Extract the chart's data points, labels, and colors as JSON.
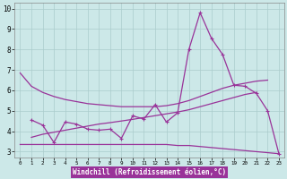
{
  "xlabel": "Windchill (Refroidissement éolien,°C)",
  "bg_color": "#cce8e8",
  "grid_color": "#aacccc",
  "line_color": "#993399",
  "xlim": [
    -0.5,
    23.5
  ],
  "ylim": [
    2.7,
    10.3
  ],
  "xticks": [
    0,
    1,
    2,
    3,
    4,
    5,
    6,
    7,
    8,
    9,
    10,
    11,
    12,
    13,
    14,
    15,
    16,
    17,
    18,
    19,
    20,
    21,
    22,
    23
  ],
  "yticks": [
    3,
    4,
    5,
    6,
    7,
    8,
    9,
    10
  ],
  "series1_x": [
    0,
    1,
    2,
    3,
    4,
    5,
    6,
    7,
    8,
    9,
    10,
    11,
    12,
    13,
    14,
    15,
    16,
    17,
    18,
    19,
    20,
    21,
    22
  ],
  "series1_y": [
    6.85,
    6.2,
    5.9,
    5.7,
    5.55,
    5.45,
    5.35,
    5.3,
    5.25,
    5.2,
    5.2,
    5.2,
    5.2,
    5.25,
    5.35,
    5.5,
    5.7,
    5.9,
    6.1,
    6.25,
    6.35,
    6.45,
    6.5
  ],
  "series2_x": [
    1,
    2,
    3,
    4,
    5,
    6,
    7,
    8,
    9,
    10,
    11,
    12,
    13,
    14,
    15,
    16,
    17,
    18,
    19,
    20,
    21,
    22,
    23
  ],
  "series2_y": [
    4.55,
    4.3,
    3.45,
    4.45,
    4.35,
    4.1,
    4.05,
    4.1,
    3.65,
    4.75,
    4.6,
    5.3,
    4.45,
    4.9,
    8.0,
    9.8,
    8.55,
    7.75,
    6.25,
    6.2,
    5.85,
    5.0,
    2.9
  ],
  "series3_x": [
    0,
    1,
    2,
    3,
    4,
    5,
    6,
    7,
    8,
    9,
    10,
    11,
    12,
    13,
    14,
    15,
    16,
    17,
    18,
    19,
    20,
    21,
    22,
    23
  ],
  "series3_y": [
    3.35,
    3.35,
    3.35,
    3.35,
    3.35,
    3.35,
    3.35,
    3.35,
    3.35,
    3.35,
    3.35,
    3.35,
    3.35,
    3.35,
    3.3,
    3.3,
    3.25,
    3.2,
    3.15,
    3.1,
    3.05,
    3.0,
    2.95,
    2.9
  ],
  "series4_x": [
    1,
    2,
    3,
    4,
    5,
    6,
    7,
    8,
    9,
    10,
    11,
    12,
    13,
    14,
    15,
    16,
    17,
    18,
    19,
    20,
    21
  ],
  "series4_y": [
    3.7,
    3.85,
    3.95,
    4.05,
    4.15,
    4.25,
    4.35,
    4.42,
    4.5,
    4.58,
    4.67,
    4.76,
    4.85,
    4.94,
    5.05,
    5.2,
    5.35,
    5.5,
    5.65,
    5.8,
    5.9
  ]
}
